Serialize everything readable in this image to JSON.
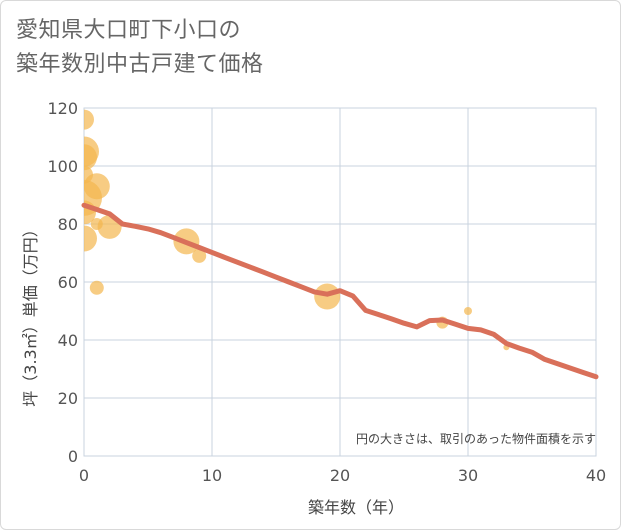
{
  "title_line1": "愛知県大口町下小口の",
  "title_line2": "築年数別中古戸建て価格",
  "chart_data": {
    "type": "scatter",
    "title": "愛知県大口町下小口の築年数別中古戸建て価格",
    "xlabel": "築年数（年）",
    "ylabel": "坪（3.3㎡）単価（万円）",
    "xlim": [
      0,
      40
    ],
    "ylim": [
      0,
      120
    ],
    "xticks": [
      0,
      10,
      20,
      30,
      40
    ],
    "yticks": [
      0,
      20,
      40,
      60,
      80,
      100,
      120
    ],
    "grid": true,
    "note": "円の大きさは、取引のあった物件面積を示す",
    "colors": {
      "bubble": "#f4b74f",
      "trend": "#d9705a",
      "grid": "#c9d3df"
    },
    "scatter": [
      {
        "x": 0,
        "y": 116,
        "size": 10
      },
      {
        "x": 0,
        "y": 105,
        "size": 15
      },
      {
        "x": 0,
        "y": 103,
        "size": 13
      },
      {
        "x": 0,
        "y": 97,
        "size": 9
      },
      {
        "x": 0,
        "y": 89,
        "size": 18
      },
      {
        "x": 0,
        "y": 84,
        "size": 12
      },
      {
        "x": 0,
        "y": 75,
        "size": 13
      },
      {
        "x": 1,
        "y": 93,
        "size": 13
      },
      {
        "x": 1,
        "y": 80,
        "size": 6
      },
      {
        "x": 1,
        "y": 58,
        "size": 7
      },
      {
        "x": 2,
        "y": 79,
        "size": 12
      },
      {
        "x": 8,
        "y": 74,
        "size": 13
      },
      {
        "x": 9,
        "y": 69,
        "size": 7
      },
      {
        "x": 19,
        "y": 55,
        "size": 13
      },
      {
        "x": 28,
        "y": 46,
        "size": 6
      },
      {
        "x": 30,
        "y": 50,
        "size": 4
      },
      {
        "x": 33,
        "y": 37.5,
        "size": 3
      }
    ],
    "trend": {
      "x": [
        0,
        1,
        2,
        3,
        4,
        5,
        6,
        7,
        8,
        9,
        10,
        11,
        12,
        13,
        14,
        15,
        16,
        17,
        18,
        19,
        20,
        21,
        22,
        23,
        24,
        25,
        26,
        27,
        28,
        29,
        30,
        31,
        32,
        33,
        34,
        35,
        36,
        37,
        38,
        39,
        40
      ],
      "y": [
        86.5,
        85,
        83.5,
        80,
        79.2,
        78.3,
        77,
        75.3,
        73.6,
        71.9,
        70.2,
        68.5,
        66.8,
        65.1,
        63.4,
        61.7,
        60,
        58.3,
        56.6,
        55.8,
        57,
        55.2,
        50.2,
        48.8,
        47.3,
        45.8,
        44.5,
        46.7,
        46.9,
        45.5,
        44,
        43.5,
        42,
        38.8,
        37.2,
        35.8,
        33.3,
        31.8,
        30.3,
        28.8,
        27.3
      ]
    }
  }
}
